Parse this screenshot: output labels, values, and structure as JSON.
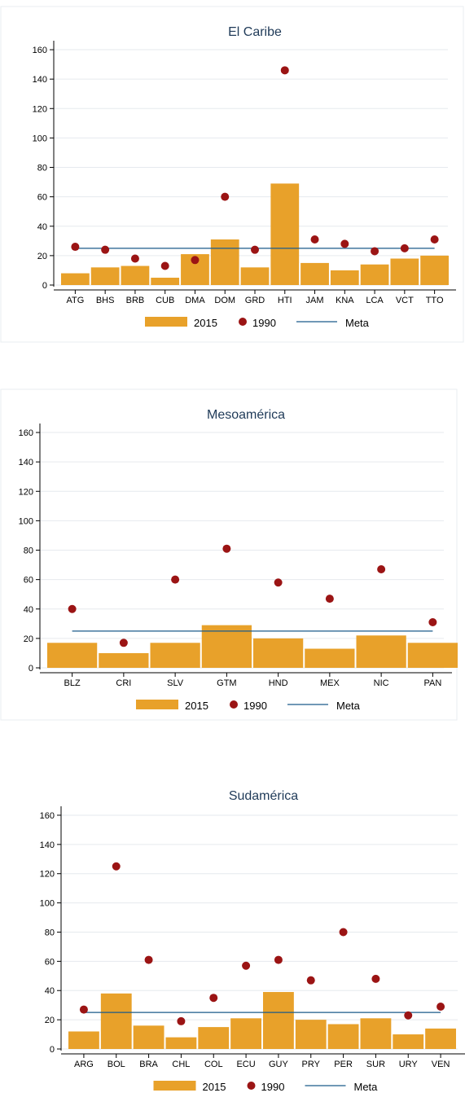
{
  "colors": {
    "bar": "#e8a12a",
    "dot": "#9b1414",
    "meta_line": "#1a5a8a",
    "grid": "#e6eaee"
  },
  "chart_data": [
    {
      "type": "bar",
      "title": "El Caribe",
      "categories": [
        "ATG",
        "BHS",
        "BRB",
        "CUB",
        "DMA",
        "DOM",
        "GRD",
        "HTI",
        "JAM",
        "KNA",
        "LCA",
        "VCT",
        "TTO"
      ],
      "series": [
        {
          "name": "2015",
          "type": "bar",
          "values": [
            8,
            12,
            13,
            5,
            21,
            31,
            12,
            69,
            15,
            10,
            14,
            18,
            20
          ]
        },
        {
          "name": "1990",
          "type": "scatter",
          "values": [
            26,
            24,
            18,
            13,
            17,
            60,
            24,
            146,
            31,
            28,
            23,
            25,
            31
          ]
        },
        {
          "name": "Meta",
          "type": "line",
          "value": 25
        }
      ],
      "yticks": [
        0,
        20,
        40,
        60,
        80,
        100,
        120,
        140,
        160
      ],
      "ylim": [
        0,
        165
      ],
      "grid": true,
      "legend": "bottom"
    },
    {
      "type": "bar",
      "title": "Mesoamérica",
      "categories": [
        "BLZ",
        "CRI",
        "SLV",
        "GTM",
        "HND",
        "MEX",
        "NIC",
        "PAN"
      ],
      "series": [
        {
          "name": "2015",
          "type": "bar",
          "values": [
            17,
            10,
            17,
            29,
            20,
            13,
            22,
            17
          ]
        },
        {
          "name": "1990",
          "type": "scatter",
          "values": [
            40,
            17,
            60,
            81,
            58,
            47,
            67,
            31
          ]
        },
        {
          "name": "Meta",
          "type": "line",
          "value": 25
        }
      ],
      "yticks": [
        0,
        20,
        40,
        60,
        80,
        100,
        120,
        140,
        160
      ],
      "ylim": [
        0,
        165
      ],
      "grid": true,
      "legend": "bottom"
    },
    {
      "type": "bar",
      "title": "Sudamérica",
      "categories": [
        "ARG",
        "BOL",
        "BRA",
        "CHL",
        "COL",
        "ECU",
        "GUY",
        "PRY",
        "PER",
        "SUR",
        "URY",
        "VEN"
      ],
      "series": [
        {
          "name": "2015",
          "type": "bar",
          "values": [
            12,
            38,
            16,
            8,
            15,
            21,
            39,
            20,
            17,
            21,
            10,
            14
          ]
        },
        {
          "name": "1990",
          "type": "scatter",
          "values": [
            27,
            125,
            61,
            19,
            35,
            57,
            61,
            47,
            80,
            48,
            23,
            29
          ]
        },
        {
          "name": "Meta",
          "type": "line",
          "value": 25
        }
      ],
      "yticks": [
        0,
        20,
        40,
        60,
        80,
        100,
        120,
        140,
        160
      ],
      "ylim": [
        0,
        165
      ],
      "grid": true,
      "legend": "bottom"
    }
  ]
}
